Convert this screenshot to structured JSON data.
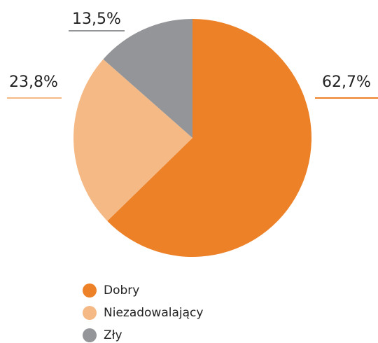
{
  "chart_data": {
    "type": "pie",
    "categories": [
      "Dobry",
      "Niezadowalający",
      "Zły"
    ],
    "values": [
      62.7,
      23.8,
      13.5
    ],
    "value_labels": [
      "62,7%",
      "23,8%",
      "13,5%"
    ],
    "colors": [
      "#ed8128",
      "#f5b985",
      "#939598"
    ],
    "legend": "bottom"
  }
}
